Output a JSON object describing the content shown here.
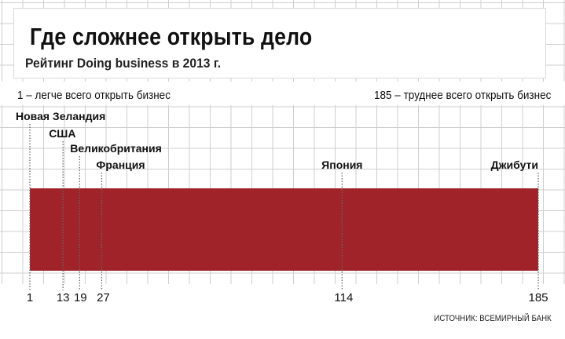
{
  "title": "Где сложнее открыть дело",
  "subtitle": "Рейтинг Doing business в 2013 г.",
  "legend": {
    "left": "1 – легче всего открыть бизнес",
    "right": "185 – труднее всего открыть бизнес"
  },
  "source": "ИСТОЧНИК: ВСЕМИРНЫЙ БАНК",
  "colors": {
    "bar": "#a0232a",
    "grid": "#cfcfcf",
    "leader": "#666666"
  },
  "chart_data": {
    "type": "bar",
    "xlim": [
      1,
      185
    ],
    "bar": {
      "from": 1,
      "to": 185
    },
    "points": [
      {
        "label": "Новая Зеландия",
        "rank": 1
      },
      {
        "label": "США",
        "rank": 13
      },
      {
        "label": "Великобритания",
        "rank": 19
      },
      {
        "label": "Франция",
        "rank": 27
      },
      {
        "label": "Япония",
        "rank": 114
      },
      {
        "label": "Джибути",
        "rank": 185
      }
    ],
    "ticks": [
      1,
      13,
      19,
      27,
      114,
      185
    ]
  }
}
